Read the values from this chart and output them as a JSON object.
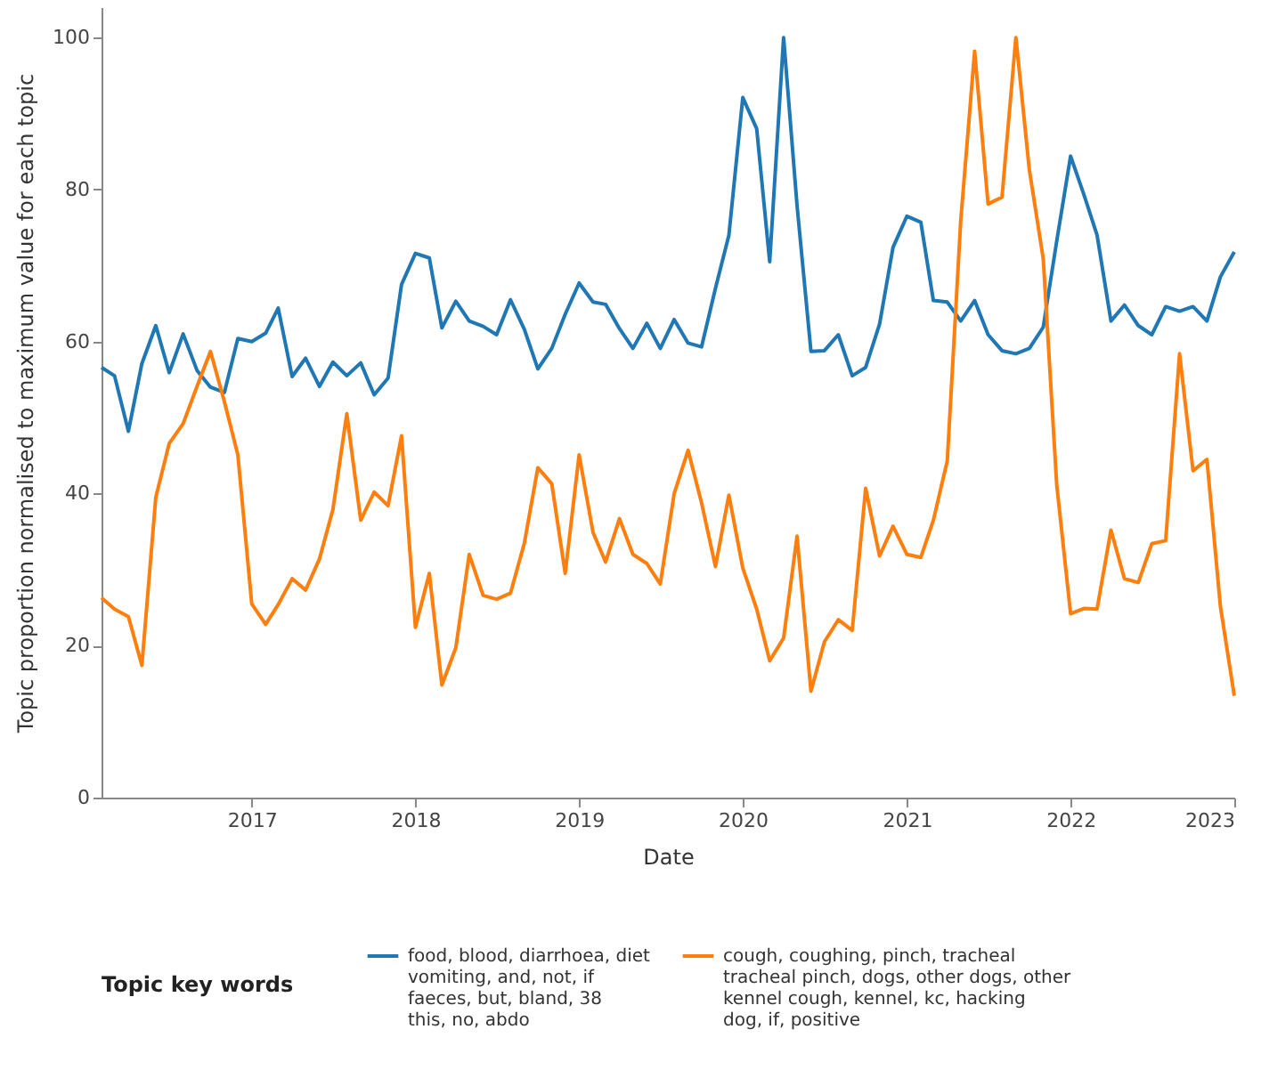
{
  "chart_data": {
    "type": "line",
    "xlabel": "Date",
    "ylabel": "Topic proportion normalised to maximum value for each topic",
    "legend_title": "Topic key words",
    "legend": "bottom",
    "grid": false,
    "line_style": "solid",
    "marker": "none",
    "x": [
      "2016-02",
      "2016-03",
      "2016-04",
      "2016-05",
      "2016-06",
      "2016-07",
      "2016-08",
      "2016-09",
      "2016-10",
      "2016-11",
      "2016-12",
      "2017-01",
      "2017-02",
      "2017-03",
      "2017-04",
      "2017-05",
      "2017-06",
      "2017-07",
      "2017-08",
      "2017-09",
      "2017-10",
      "2017-11",
      "2017-12",
      "2018-01",
      "2018-02",
      "2018-03",
      "2018-04",
      "2018-05",
      "2018-06",
      "2018-07",
      "2018-08",
      "2018-09",
      "2018-10",
      "2018-11",
      "2018-12",
      "2019-01",
      "2019-02",
      "2019-03",
      "2019-04",
      "2019-05",
      "2019-06",
      "2019-07",
      "2019-08",
      "2019-09",
      "2019-10",
      "2019-11",
      "2019-12",
      "2020-01",
      "2020-02",
      "2020-03",
      "2020-04",
      "2020-05",
      "2020-06",
      "2020-07",
      "2020-08",
      "2020-09",
      "2020-10",
      "2020-11",
      "2020-12",
      "2021-01",
      "2021-02",
      "2021-03",
      "2021-04",
      "2021-05",
      "2021-06",
      "2021-07",
      "2021-08",
      "2021-09",
      "2021-10",
      "2021-11",
      "2021-12",
      "2022-01",
      "2022-02",
      "2022-03",
      "2022-04",
      "2022-05",
      "2022-06",
      "2022-07",
      "2022-08",
      "2022-09",
      "2022-10",
      "2022-11",
      "2022-12",
      "2023-01"
    ],
    "xlim": [
      "2016-02",
      "2023-01"
    ],
    "xticks": [
      "2017",
      "2018",
      "2019",
      "2020",
      "2021",
      "2022",
      "2023"
    ],
    "ylim": [
      0,
      104
    ],
    "yticks": [
      0,
      20,
      40,
      60,
      80,
      100
    ],
    "series": [
      {
        "name": "food, blood, diarrhoea, diet\nvomiting, and, not, if\nfaeces, but, bland, 38\nthis, no, abdo",
        "color": "#1f77b4",
        "values": [
          56.6,
          55.5,
          48.2,
          57.1,
          62.1,
          55.9,
          61.0,
          56.2,
          54.0,
          53.3,
          60.4,
          60.0,
          61.1,
          64.4,
          55.4,
          57.8,
          54.1,
          57.3,
          55.5,
          57.2,
          53.0,
          55.2,
          67.5,
          71.6,
          71.0,
          61.8,
          65.3,
          62.7,
          62.0,
          60.9,
          65.5,
          61.6,
          56.4,
          59.1,
          63.6,
          67.7,
          65.2,
          64.9,
          61.7,
          59.1,
          62.4,
          59.1,
          62.9,
          59.8,
          59.3,
          67.0,
          74.0,
          92.1,
          88.0,
          70.5,
          100,
          77.9,
          58.7,
          58.8,
          60.9,
          55.5,
          56.6,
          62.3,
          72.4,
          76.5,
          75.7,
          65.4,
          65.2,
          62.7,
          65.4,
          60.9,
          58.8,
          58.4,
          59.1,
          61.9,
          73.2,
          84.4,
          79.1,
          74.0,
          62.7,
          64.8,
          62.1,
          60.9,
          64.6,
          64.0,
          64.6,
          62.7,
          68.5,
          71.8
        ]
      },
      {
        "name": "cough, coughing, pinch, tracheal\ntracheal pinch, dogs, other dogs, other\nkennel cough, kennel, kc, hacking\ndog, if, positive",
        "color": "#ff7f0e",
        "values": [
          26.3,
          24.8,
          23.8,
          17.4,
          39.5,
          46.6,
          49.2,
          54.1,
          58.7,
          52.1,
          45.1,
          25.5,
          22.8,
          25.4,
          28.8,
          27.3,
          31.4,
          37.9,
          50.5,
          36.5,
          40.2,
          38.4,
          47.6,
          22.4,
          29.5,
          14.8,
          19.7,
          32.0,
          26.6,
          26.1,
          26.9,
          33.5,
          43.4,
          41.3,
          29.5,
          45.1,
          34.9,
          31.0,
          36.7,
          32.0,
          30.8,
          28.1,
          40.0,
          45.7,
          38.8,
          30.4,
          39.8,
          30.2,
          24.8,
          18.0,
          21.0,
          34.4,
          14.0,
          20.5,
          23.4,
          22.0,
          40.7,
          31.8,
          35.7,
          32.0,
          31.6,
          36.5,
          44.3,
          75.9,
          98.2,
          78.1,
          79.0,
          100,
          82.6,
          70.9,
          41.2,
          24.2,
          24.9,
          24.8,
          35.2,
          28.8,
          28.3,
          33.4,
          33.8,
          58.4,
          43.0,
          44.5,
          25.2,
          13.4
        ]
      }
    ]
  }
}
